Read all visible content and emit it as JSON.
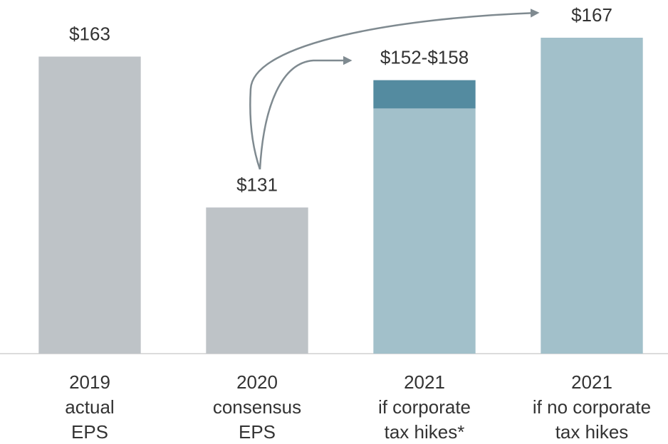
{
  "chart_data": {
    "type": "bar",
    "categories": [
      [
        "2019",
        "actual",
        "EPS"
      ],
      [
        "2020",
        "consensus",
        "EPS"
      ],
      [
        "2021",
        "if corporate",
        "tax hikes*"
      ],
      [
        "2021",
        "if no corporate",
        "tax hikes"
      ]
    ],
    "values": [
      163,
      131,
      152,
      167
    ],
    "high": [
      null,
      null,
      158,
      null
    ],
    "value_labels": [
      "$163",
      "$131",
      "$152-$158",
      "$167"
    ],
    "colors": [
      "#bec3c7",
      "#bec3c7",
      "#a2c0ca",
      "#a2c0ca"
    ],
    "range_color": "#548ba0",
    "ylim": [
      100,
      175
    ]
  }
}
